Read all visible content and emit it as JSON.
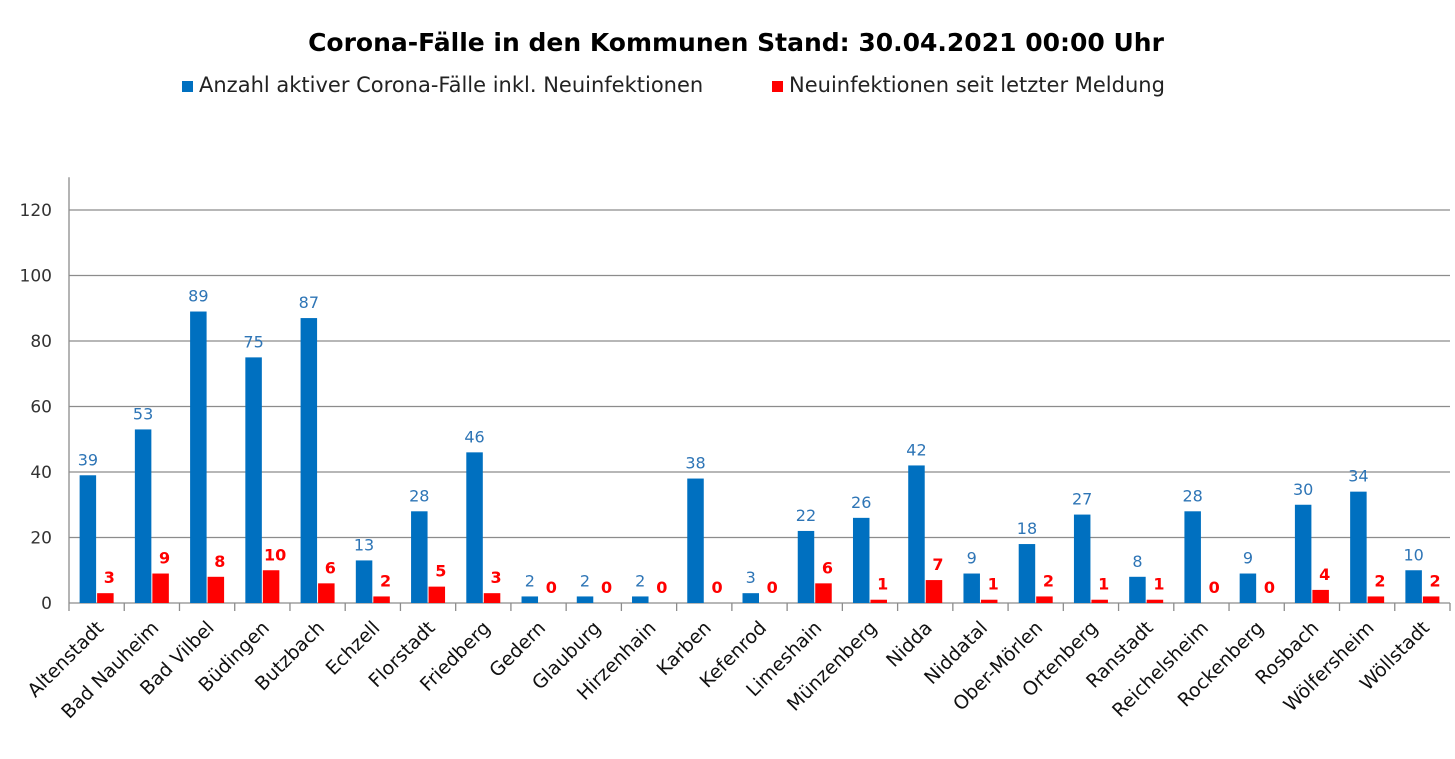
{
  "chart_data": {
    "type": "bar",
    "title": "Corona-Fälle in den Kommunen Stand: 30.04.2021 00:00 Uhr",
    "categories": [
      "Altenstadt",
      "Bad Nauheim",
      "Bad Vilbel",
      "Büdingen",
      "Butzbach",
      "Echzell",
      "Florstadt",
      "Friedberg",
      "Gedern",
      "Glauburg",
      "Hirzenhain",
      "Karben",
      "Kefenrod",
      "Limeshain",
      "Münzenberg",
      "Nidda",
      "Niddatal",
      "Ober-Mörlen",
      "Ortenberg",
      "Ranstadt",
      "Reichelsheim",
      "Rockenberg",
      "Rosbach",
      "Wölfersheim",
      "Wöllstadt"
    ],
    "series": [
      {
        "name": "Anzahl aktiver Corona-Fälle inkl. Neuinfektionen",
        "color": "#0070C0",
        "label_color": "#2E75B6",
        "values": [
          39,
          53,
          89,
          75,
          87,
          13,
          28,
          46,
          2,
          2,
          2,
          38,
          3,
          22,
          26,
          42,
          9,
          18,
          27,
          8,
          28,
          9,
          30,
          34,
          10
        ]
      },
      {
        "name": "Neuinfektionen seit letzter Meldung",
        "color": "#FF0000",
        "label_color": "#FF0000",
        "values": [
          3,
          9,
          8,
          10,
          6,
          2,
          5,
          3,
          0,
          0,
          0,
          0,
          0,
          6,
          1,
          7,
          1,
          2,
          1,
          1,
          0,
          0,
          4,
          2,
          2
        ]
      }
    ],
    "yticks": [
      0,
      20,
      40,
      60,
      80,
      100,
      120
    ],
    "ylim": [
      0,
      130
    ],
    "xlabel": "",
    "ylabel": "",
    "grid": true,
    "legend_position": "top"
  }
}
